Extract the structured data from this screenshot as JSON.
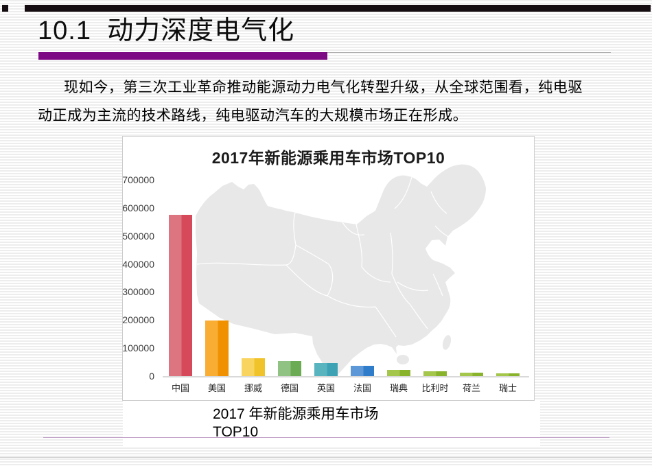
{
  "slide": {
    "title": "10.1  动力深度电气化",
    "paragraph_line1": "现如今，第三次工业革命推动能源动力电气化转型升级，从全球范围看，纯电驱",
    "paragraph_line2": "动正成为主流的技术路线，纯电驱动汽车的大规模市场正在形成。",
    "caption_line1": "2017 年新能源乘用车市场",
    "caption_line2": "TOP10",
    "accent_color": "#7d0a84",
    "top_bar_color": "#140c11"
  },
  "chart_data": {
    "type": "bar",
    "title": "2017年新能源乘用车市场TOP10",
    "categories": [
      "中国",
      "美国",
      "挪威",
      "德国",
      "英国",
      "法国",
      "瑞典",
      "比利时",
      "荷兰",
      "瑞士"
    ],
    "values": [
      575000,
      198000,
      63000,
      54000,
      47000,
      37000,
      21000,
      17000,
      13000,
      10000
    ],
    "yticks": [
      "700000",
      "600000",
      "500000",
      "400000",
      "300000",
      "200000",
      "100000",
      "0"
    ],
    "ylim": [
      0,
      700000
    ],
    "ylabel": "",
    "xlabel": "",
    "grid": false,
    "legend": false,
    "background": "china-map-light-gray",
    "bar_colors_light": [
      "#dd7581",
      "#f9ad33",
      "#f9d45e",
      "#8fc283",
      "#58b5c0",
      "#5c97d8",
      "#a3c64b",
      "#a3c64b",
      "#a3c64b",
      "#a3c64b"
    ],
    "bar_colors_dark": [
      "#d5495a",
      "#f09102",
      "#f1c32a",
      "#6aab53",
      "#3da3b4",
      "#2f7dca",
      "#8ab32c",
      "#8ab32c",
      "#8ab32c",
      "#8ab32c"
    ]
  }
}
